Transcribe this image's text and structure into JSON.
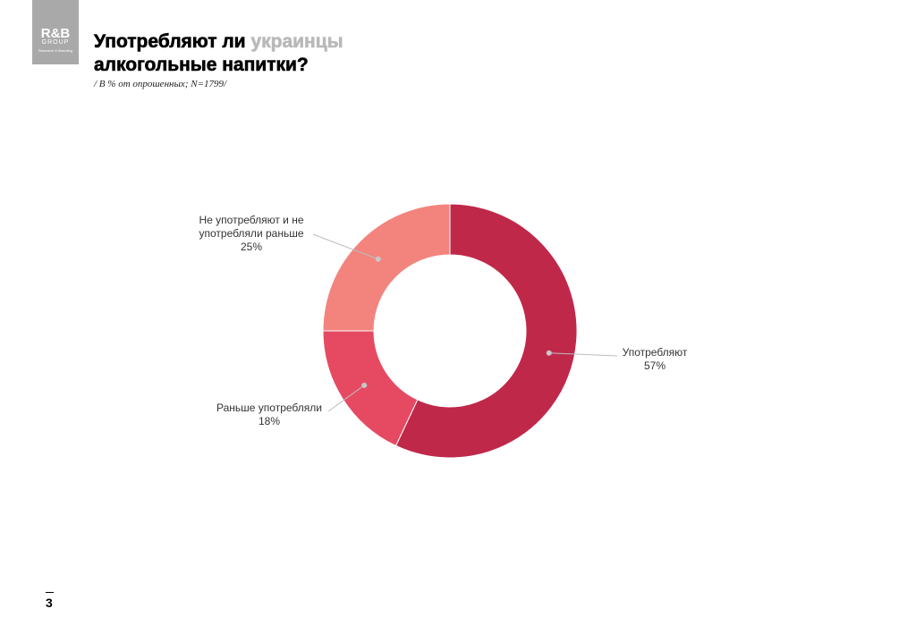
{
  "logo": {
    "main": "R&B",
    "sub": "GROUP",
    "tag": "Research & Branding"
  },
  "title": {
    "part1": "Употребляют ли ",
    "highlight": "украинцы",
    "line2": "алкогольные напитки?"
  },
  "subtitle": "/ В % от опрошенных; N=1799/",
  "page_number": "3",
  "chart_data": {
    "type": "pie",
    "variant": "donut",
    "slices": [
      {
        "label": "Употребляют",
        "value": 57,
        "value_label": "57%",
        "color": "#c0284a"
      },
      {
        "label": "Раньше употребляли",
        "value": 18,
        "value_label": "18%",
        "color": "#e64a62"
      },
      {
        "label": "Не употребляют и не употребляли раньше",
        "value": 25,
        "value_label": "25%",
        "color": "#f2847d"
      }
    ]
  }
}
